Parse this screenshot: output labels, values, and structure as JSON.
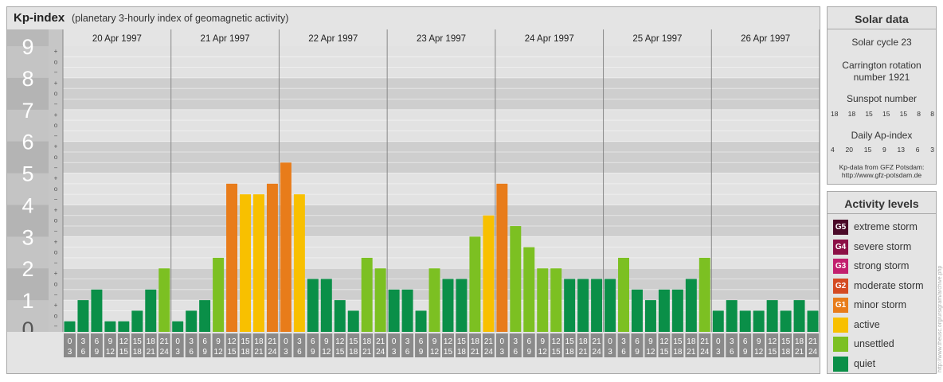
{
  "header": {
    "title": "Kp-index",
    "subtitle": "(planetary 3-hourly index of geomagnetic activity)"
  },
  "chart_data": {
    "type": "bar",
    "ylim": [
      0,
      9
    ],
    "y_major_ticks": [
      "0",
      "1",
      "2",
      "3",
      "4",
      "5",
      "6",
      "7",
      "8",
      "9"
    ],
    "y_minor_marks": [
      "+",
      "o",
      "−"
    ],
    "days": [
      "20 Apr 1997",
      "21 Apr 1997",
      "22 Apr 1997",
      "23 Apr 1997",
      "24 Apr 1997",
      "25 Apr 1997",
      "26 Apr 1997"
    ],
    "interval_start_labels": [
      "0",
      "3",
      "6",
      "9",
      "12",
      "15",
      "18",
      "21"
    ],
    "interval_end_labels": [
      "3",
      "6",
      "9",
      "12",
      "15",
      "18",
      "21",
      "24"
    ],
    "values": [
      [
        0.333,
        1.0,
        1.333,
        0.333,
        0.333,
        0.667,
        1.333,
        2.0
      ],
      [
        0.333,
        0.667,
        1.0,
        2.333,
        4.667,
        4.333,
        4.333,
        4.667
      ],
      [
        5.333,
        4.333,
        1.667,
        1.667,
        1.0,
        0.667,
        2.333,
        2.0
      ],
      [
        1.333,
        1.333,
        0.667,
        2.0,
        1.667,
        1.667,
        3.0,
        3.667
      ],
      [
        4.667,
        3.333,
        2.667,
        2.0,
        2.0,
        1.667,
        1.667,
        1.667
      ],
      [
        1.667,
        2.333,
        1.333,
        1.0,
        1.333,
        1.333,
        1.667,
        2.333
      ],
      [
        0.667,
        1.0,
        0.667,
        0.667,
        1.0,
        0.667,
        1.0,
        0.667
      ]
    ],
    "categories": [
      "quiet",
      "unsettled",
      "active",
      "minor storm",
      "moderate storm",
      "strong storm",
      "severe storm",
      "extreme storm"
    ],
    "category_colors": {
      "quiet": "#0a8f48",
      "unsettled": "#7cc022",
      "active": "#f8c000",
      "minor storm": "#e87c1a",
      "moderate storm": "#d44a22",
      "strong storm": "#c21f6e",
      "severe storm": "#8c1046",
      "extreme storm": "#4a0a28"
    }
  },
  "solar": {
    "title": "Solar data",
    "cycle": "Solar cycle 23",
    "carrington_line1": "Carrington rotation",
    "carrington_line2": "number 1921",
    "sunspot_label": "Sunspot number",
    "sunspot_values": [
      "18",
      "18",
      "15",
      "15",
      "15",
      "8",
      "8"
    ],
    "ap_label": "Daily Ap-index",
    "ap_values": [
      "4",
      "20",
      "15",
      "9",
      "13",
      "6",
      "3"
    ],
    "source_line1": "Kp-data from GFZ Potsdam:",
    "source_line2": "http://www.gfz-potsdam.de"
  },
  "activity": {
    "title": "Activity levels",
    "items": [
      {
        "code": "G5",
        "label": "extreme storm",
        "color": "#4a0a28"
      },
      {
        "code": "G4",
        "label": "severe storm",
        "color": "#8c1046"
      },
      {
        "code": "G3",
        "label": "strong storm",
        "color": "#c21f6e"
      },
      {
        "code": "G2",
        "label": "moderate storm",
        "color": "#d44a22"
      },
      {
        "code": "G1",
        "label": "minor storm",
        "color": "#e87c1a"
      },
      {
        "code": "",
        "label": "active",
        "color": "#f8c000"
      },
      {
        "code": "",
        "label": "unsettled",
        "color": "#7cc022"
      },
      {
        "code": "",
        "label": "quiet",
        "color": "#0a8f48"
      }
    ]
  },
  "watermark": "http://www.theusc.org/ursigram/archive.php"
}
